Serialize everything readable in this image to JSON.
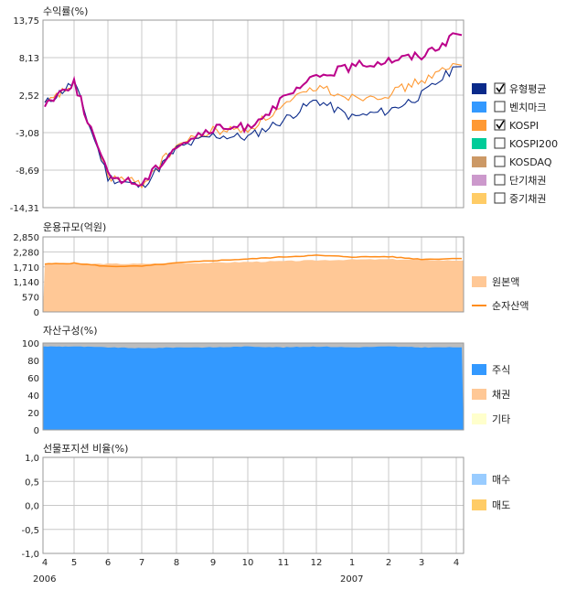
{
  "x_axis": {
    "months": [
      "4",
      "5",
      "6",
      "7",
      "8",
      "9",
      "10",
      "11",
      "12",
      "1",
      "2",
      "3",
      "4"
    ],
    "years": [
      {
        "label": "2006",
        "at_month_index": 0
      },
      {
        "label": "2007",
        "at_month_index": 9
      }
    ]
  },
  "colors": {
    "fund": "#0a2a8a",
    "benchmark": "#3399ff",
    "kospi": "#ff9933",
    "kospi200": "#00cc99",
    "kosdaq": "#cc9966",
    "short_bond": "#cc99cc",
    "mid_bond": "#ffcc66",
    "purple_line": "#bb008a",
    "principal": "#ffc896",
    "net_asset": "#ff8c1a",
    "stock": "#3399ff",
    "bond": "#ffc896",
    "other": "#ffffcc",
    "other_top": "#bdbdbd",
    "buy": "#99ccff",
    "sell": "#ffcc66"
  },
  "chart_data": [
    {
      "id": "returns",
      "type": "line",
      "title": "수익률(%)",
      "ylim": [
        -14.31,
        13.75
      ],
      "yticks": [
        "13,75",
        "8,13",
        "2,52",
        "-3,08",
        "-8,69",
        "-14,31"
      ],
      "x": [
        "2006-04",
        "2006-05",
        "2006-06",
        "2006-07",
        "2006-08",
        "2006-09",
        "2006-10",
        "2006-11",
        "2006-12",
        "2007-01",
        "2007-02",
        "2007-03",
        "2007-04"
      ],
      "series": [
        {
          "name": "유형평균",
          "color_key": "fund",
          "checked": true,
          "values": [
            1.2,
            4.5,
            -9.8,
            -11.2,
            -5.5,
            -3.5,
            -3.8,
            -1.2,
            1.8,
            -0.8,
            0.2,
            2.5,
            6.8
          ]
        },
        {
          "name": "KOSPI",
          "color_key": "kospi",
          "checked": true,
          "values": [
            1.0,
            4.3,
            -9.6,
            -10.8,
            -5.0,
            -2.8,
            -2.6,
            0.8,
            3.8,
            2.2,
            2.7,
            4.7,
            7.0
          ]
        },
        {
          "name": "",
          "color_key": "purple_line",
          "checked": false,
          "values": [
            1.2,
            4.5,
            -9.5,
            -10.8,
            -5.0,
            -2.6,
            -2.2,
            1.8,
            5.3,
            6.8,
            7.8,
            8.5,
            11.5
          ]
        }
      ],
      "legend": [
        {
          "label": "유형평균",
          "checked": true,
          "color_key": "fund"
        },
        {
          "label": "벤치마크",
          "checked": false,
          "color_key": "benchmark"
        },
        {
          "label": "KOSPI",
          "checked": true,
          "color_key": "kospi"
        },
        {
          "label": "KOSPI200",
          "checked": false,
          "color_key": "kospi200"
        },
        {
          "label": "KOSDAQ",
          "checked": false,
          "color_key": "kosdaq"
        },
        {
          "label": "단기채권",
          "checked": false,
          "color_key": "short_bond"
        },
        {
          "label": "중기채권",
          "checked": false,
          "color_key": "mid_bond"
        }
      ]
    },
    {
      "id": "fund_size",
      "type": "area",
      "title": "운용규모(억원)",
      "ylim": [
        0,
        2850
      ],
      "yticks": [
        "2,850",
        "2,280",
        "1,710",
        "1,140",
        "570",
        "0"
      ],
      "x": [
        "2006-04",
        "2006-05",
        "2006-06",
        "2006-07",
        "2006-08",
        "2006-09",
        "2006-10",
        "2006-11",
        "2006-12",
        "2007-01",
        "2007-02",
        "2007-03",
        "2007-04"
      ],
      "series": [
        {
          "name": "원본액",
          "color_key": "principal",
          "style": "area",
          "values": [
            1820,
            1830,
            1830,
            1830,
            1850,
            1870,
            1900,
            1930,
            1960,
            1990,
            2000,
            1980,
            1950
          ]
        },
        {
          "name": "순자산액",
          "color_key": "net_asset",
          "style": "line",
          "values": [
            1820,
            1850,
            1730,
            1740,
            1860,
            1950,
            2010,
            2090,
            2150,
            2090,
            2100,
            2000,
            2030
          ]
        }
      ],
      "legend": [
        {
          "label": "원본액",
          "color_key": "principal"
        },
        {
          "label": "순자산액",
          "color_key": "net_asset"
        }
      ]
    },
    {
      "id": "composition",
      "type": "area",
      "title": "자산구성(%)",
      "ylim": [
        0,
        100
      ],
      "yticks": [
        "100",
        "80",
        "60",
        "40",
        "20",
        "0"
      ],
      "x": [
        "2006-04",
        "2006-05",
        "2006-06",
        "2006-07",
        "2006-08",
        "2006-09",
        "2006-10",
        "2006-11",
        "2006-12",
        "2007-01",
        "2007-02",
        "2007-03",
        "2007-04"
      ],
      "series": [
        {
          "name": "주식",
          "color_key": "stock",
          "values": [
            96,
            96,
            95,
            94,
            95,
            95,
            96,
            95,
            96,
            95,
            96,
            95,
            95
          ]
        },
        {
          "name": "채권",
          "color_key": "bond",
          "values": [
            0,
            0,
            0,
            0,
            0,
            0,
            0,
            0,
            0,
            0,
            0,
            0,
            0
          ]
        },
        {
          "name": "기타",
          "color_key": "other",
          "values": [
            4,
            4,
            5,
            6,
            5,
            5,
            4,
            5,
            4,
            5,
            4,
            5,
            5
          ]
        }
      ],
      "legend": [
        {
          "label": "주식",
          "color_key": "stock"
        },
        {
          "label": "채권",
          "color_key": "bond"
        },
        {
          "label": "기타",
          "color_key": "other"
        }
      ]
    },
    {
      "id": "futures",
      "type": "line",
      "title": "선물포지션 비율(%)",
      "ylim": [
        -1.0,
        1.0
      ],
      "yticks": [
        "1,0",
        "0,5",
        "0,0",
        "-0,5",
        "-1,0"
      ],
      "series": [],
      "legend": [
        {
          "label": "매수",
          "color_key": "buy"
        },
        {
          "label": "매도",
          "color_key": "sell"
        }
      ]
    }
  ]
}
